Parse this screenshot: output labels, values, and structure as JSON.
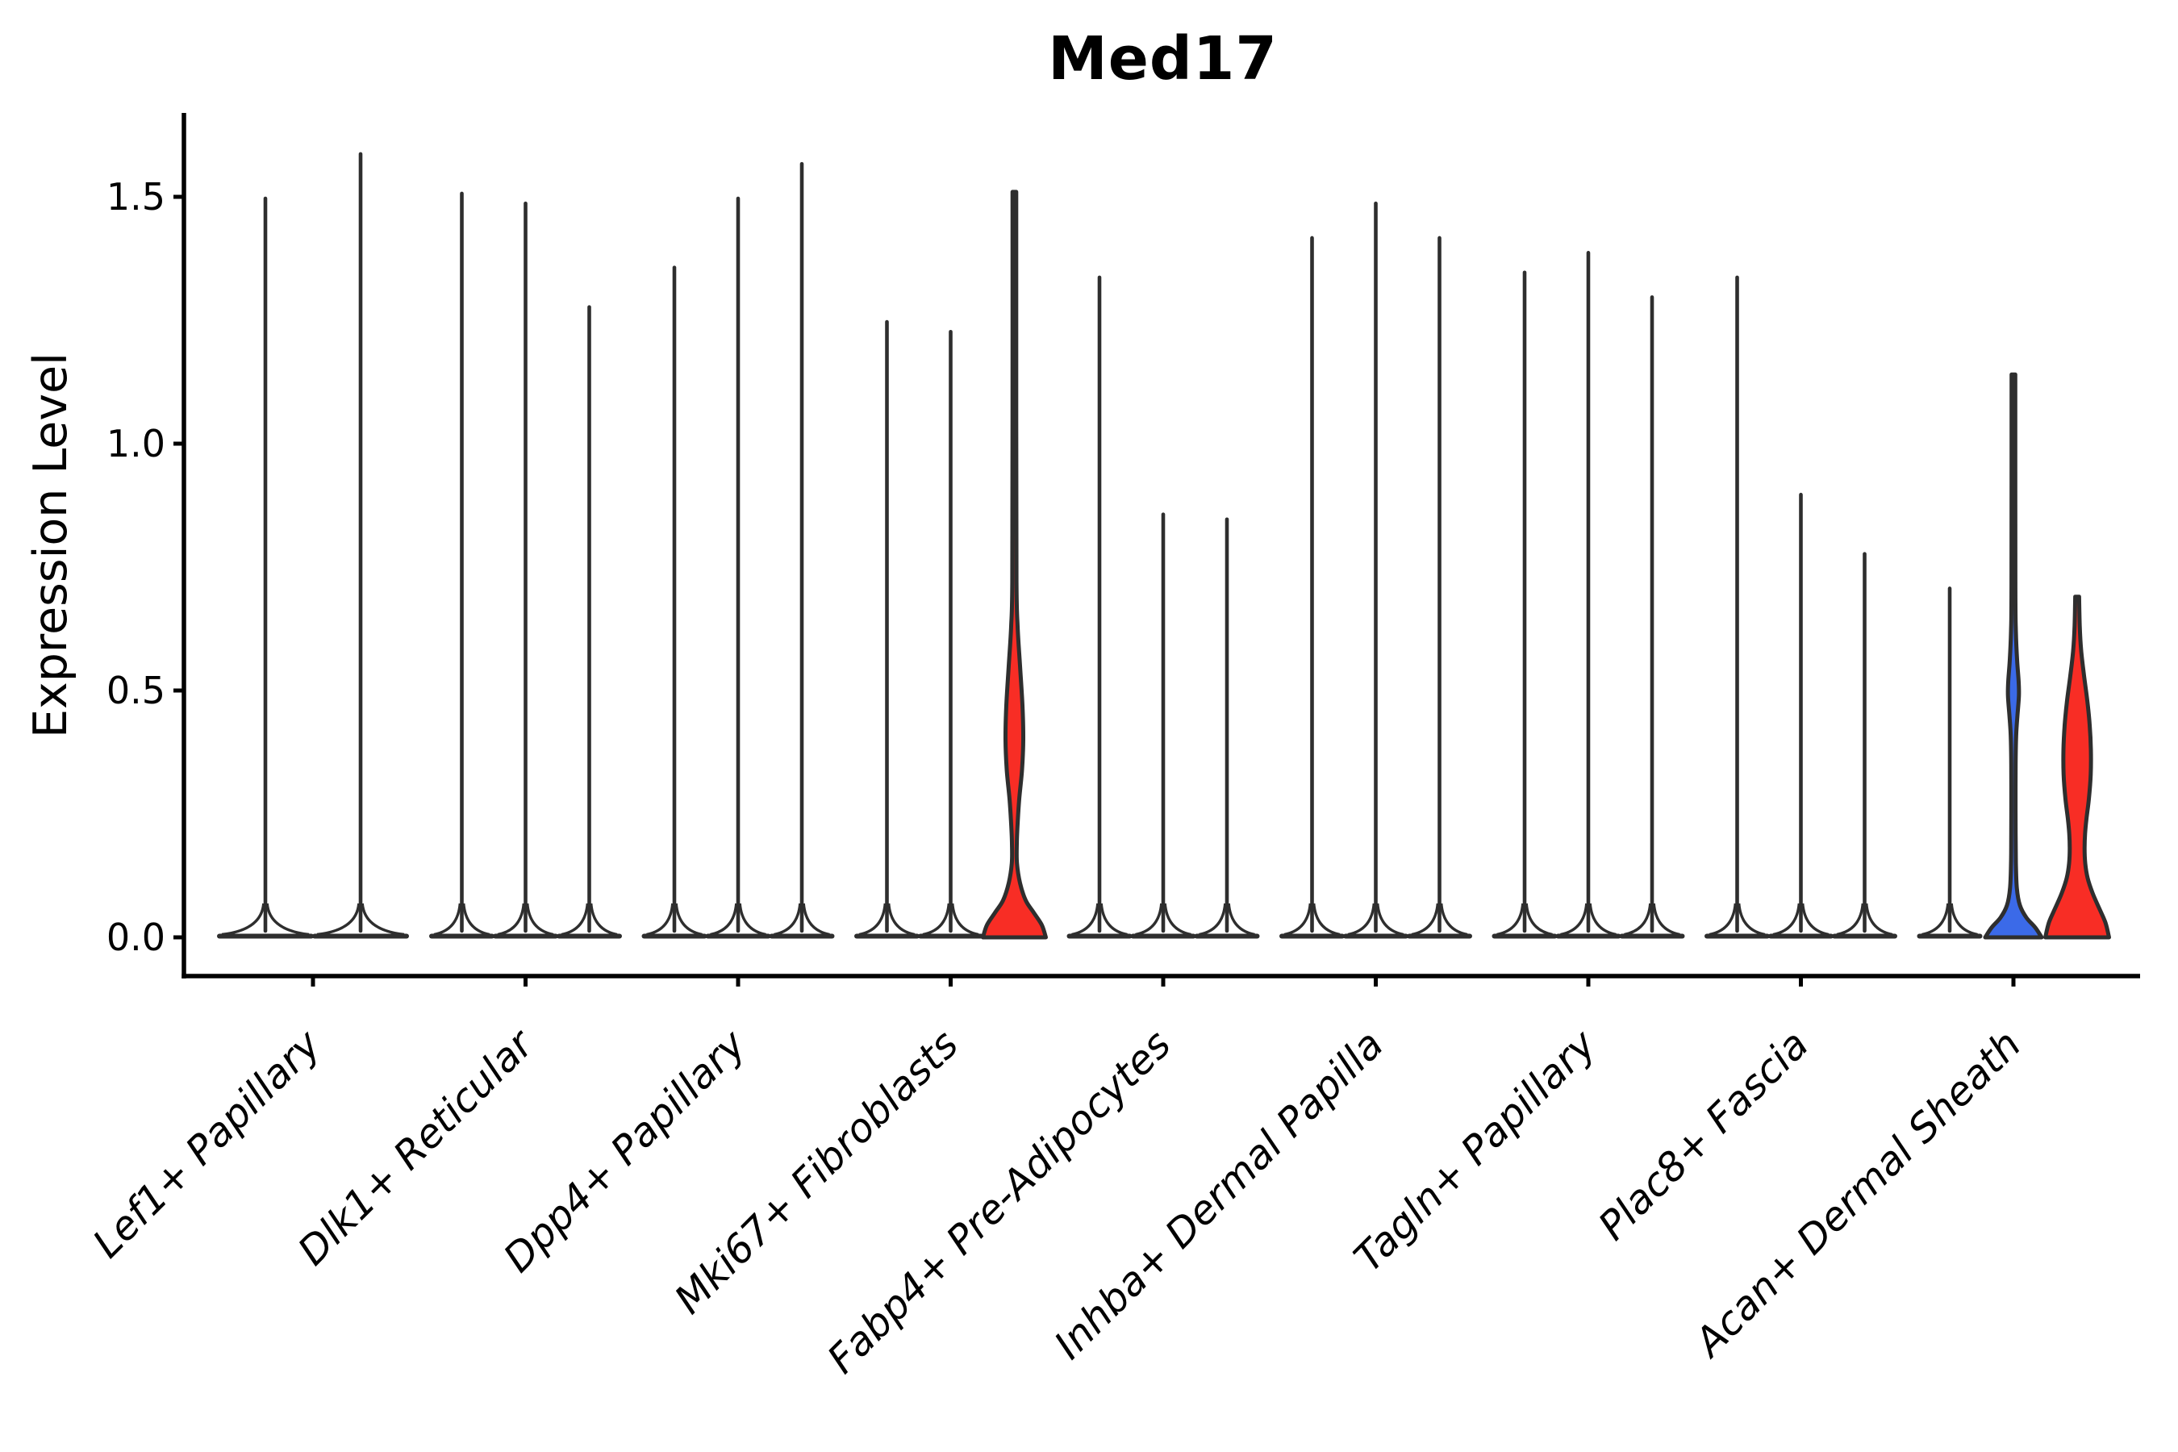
{
  "chart_data": {
    "type": "violin",
    "title": "Med17",
    "ylabel": "Expression Level",
    "xlabel": "",
    "grid": false,
    "legend": "none",
    "ylim": [
      -0.08,
      1.67
    ],
    "ytick_values": [
      0.0,
      0.5,
      1.0,
      1.5
    ],
    "ytick_labels": [
      "0.0",
      "0.5",
      "1.0",
      "1.5"
    ],
    "x_labels_rotation_deg": 45,
    "x_labels_italic": true,
    "colors": {
      "violin_stroke": "#2e2e2e",
      "axis": "#000000",
      "text": "#000000",
      "red_fill": "#f82d25",
      "blue_fill": "#3b6ae8",
      "background": "#ffffff"
    },
    "categories": [
      {
        "label": "Lef1+ Papillary",
        "violins": [
          {
            "max_expression": 1.5,
            "fill": "none",
            "shape": "spike"
          },
          {
            "max_expression": 1.59,
            "fill": "none",
            "shape": "spike"
          }
        ]
      },
      {
        "label": "Dlk1+ Reticular",
        "violins": [
          {
            "max_expression": 1.51,
            "fill": "none",
            "shape": "spike"
          },
          {
            "max_expression": 1.49,
            "fill": "none",
            "shape": "spike"
          },
          {
            "max_expression": 1.28,
            "fill": "none",
            "shape": "spike"
          }
        ]
      },
      {
        "label": "Dpp4+ Papillary",
        "violins": [
          {
            "max_expression": 1.36,
            "fill": "none",
            "shape": "spike"
          },
          {
            "max_expression": 1.5,
            "fill": "none",
            "shape": "spike"
          },
          {
            "max_expression": 1.57,
            "fill": "none",
            "shape": "spike"
          }
        ]
      },
      {
        "label": "Mki67+ Fibroblasts",
        "violins": [
          {
            "max_expression": 1.25,
            "fill": "none",
            "shape": "spike"
          },
          {
            "max_expression": 1.23,
            "fill": "none",
            "shape": "spike"
          },
          {
            "max_expression": 1.51,
            "fill": "#f82d25",
            "shape": "body",
            "profile": [
              [
                1.51,
                2.3
              ],
              [
                1.05,
                2.3
              ],
              [
                0.72,
                2.6
              ],
              [
                0.63,
                4.0
              ],
              [
                0.55,
                7.0
              ],
              [
                0.47,
                10.0
              ],
              [
                0.4,
                11.0
              ],
              [
                0.34,
                9.5
              ],
              [
                0.28,
                6.0
              ],
              [
                0.23,
                4.0
              ],
              [
                0.19,
                3.0
              ],
              [
                0.15,
                3.2
              ],
              [
                0.11,
                7.0
              ],
              [
                0.075,
                14.0
              ],
              [
                0.05,
                24.0
              ],
              [
                0.025,
                34.0
              ],
              [
                0.0,
                39.0
              ]
            ]
          }
        ]
      },
      {
        "label": "Fabp4+ Pre-Adipocytes",
        "violins": [
          {
            "max_expression": 1.34,
            "fill": "none",
            "shape": "spike"
          },
          {
            "max_expression": 0.86,
            "fill": "none",
            "shape": "spike"
          },
          {
            "max_expression": 0.85,
            "fill": "none",
            "shape": "spike"
          }
        ]
      },
      {
        "label": "Inhba+ Dermal Papilla",
        "violins": [
          {
            "max_expression": 1.42,
            "fill": "none",
            "shape": "spike"
          },
          {
            "max_expression": 1.49,
            "fill": "none",
            "shape": "spike"
          },
          {
            "max_expression": 1.42,
            "fill": "none",
            "shape": "spike"
          }
        ]
      },
      {
        "label": "Tagln+ Papillary",
        "violins": [
          {
            "max_expression": 1.35,
            "fill": "none",
            "shape": "spike"
          },
          {
            "max_expression": 1.39,
            "fill": "none",
            "shape": "spike"
          },
          {
            "max_expression": 1.3,
            "fill": "none",
            "shape": "spike"
          }
        ]
      },
      {
        "label": "Plac8+ Fascia",
        "violins": [
          {
            "max_expression": 1.34,
            "fill": "none",
            "shape": "spike"
          },
          {
            "max_expression": 0.9,
            "fill": "none",
            "shape": "spike"
          },
          {
            "max_expression": 0.78,
            "fill": "none",
            "shape": "spike"
          }
        ]
      },
      {
        "label": "Acan+ Dermal Sheath",
        "violins": [
          {
            "max_expression": 0.71,
            "fill": "none",
            "shape": "spike"
          },
          {
            "max_expression": 1.14,
            "fill": "#3b6ae8",
            "shape": "body",
            "profile": [
              [
                1.14,
                2.3
              ],
              [
                0.72,
                2.4
              ],
              [
                0.62,
                3.0
              ],
              [
                0.56,
                4.6
              ],
              [
                0.52,
                6.4
              ],
              [
                0.49,
                6.8
              ],
              [
                0.45,
                5.0
              ],
              [
                0.41,
                3.4
              ],
              [
                0.35,
                2.7
              ],
              [
                0.28,
                2.6
              ],
              [
                0.21,
                2.7
              ],
              [
                0.15,
                3.0
              ],
              [
                0.1,
                4.2
              ],
              [
                0.065,
                8.0
              ],
              [
                0.04,
                16.0
              ],
              [
                0.02,
                27.0
              ],
              [
                0.0,
                35.0
              ]
            ]
          },
          {
            "max_expression": 0.69,
            "fill": "#f82d25",
            "shape": "body",
            "profile": [
              [
                0.69,
                2.4
              ],
              [
                0.63,
                3.2
              ],
              [
                0.58,
                5.0
              ],
              [
                0.53,
                8.5
              ],
              [
                0.48,
                12.5
              ],
              [
                0.43,
                15.5
              ],
              [
                0.38,
                17.0
              ],
              [
                0.33,
                16.8
              ],
              [
                0.28,
                14.5
              ],
              [
                0.24,
                11.5
              ],
              [
                0.21,
                9.8
              ],
              [
                0.18,
                9.2
              ],
              [
                0.15,
                10.0
              ],
              [
                0.12,
                13.0
              ],
              [
                0.09,
                19.0
              ],
              [
                0.06,
                27.0
              ],
              [
                0.03,
                35.0
              ],
              [
                0.0,
                39.5
              ]
            ]
          }
        ]
      }
    ]
  }
}
